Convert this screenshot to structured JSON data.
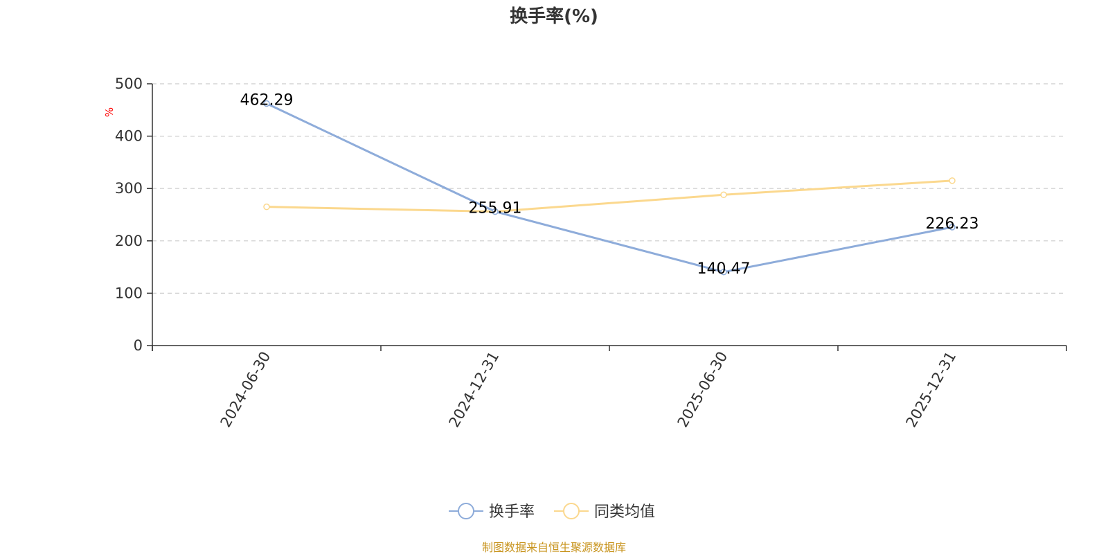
{
  "chart_data": {
    "type": "line",
    "title": "换手率(%)",
    "ylabel": "%",
    "x": [
      "2024-06-30",
      "2024-12-31",
      "2025-06-30",
      "2025-12-31"
    ],
    "ylim": [
      0,
      500
    ],
    "yticks": [
      0,
      100,
      200,
      300,
      400,
      500
    ],
    "grid": true,
    "legend_position": "bottom-center",
    "series": [
      {
        "name": "换手率",
        "values": [
          462.29,
          255.91,
          140.47,
          226.23
        ],
        "color": "#8eacda",
        "show_labels": true
      },
      {
        "name": "同类均值",
        "values": [
          265,
          256,
          288,
          315
        ],
        "color": "#fbd88e",
        "show_labels": false
      }
    ]
  },
  "source_note": "制图数据来自恒生聚源数据库",
  "colors": {
    "axis": "#333333",
    "grid": "#cccccc",
    "unit": "#ff0000",
    "source": "#c8941e"
  }
}
